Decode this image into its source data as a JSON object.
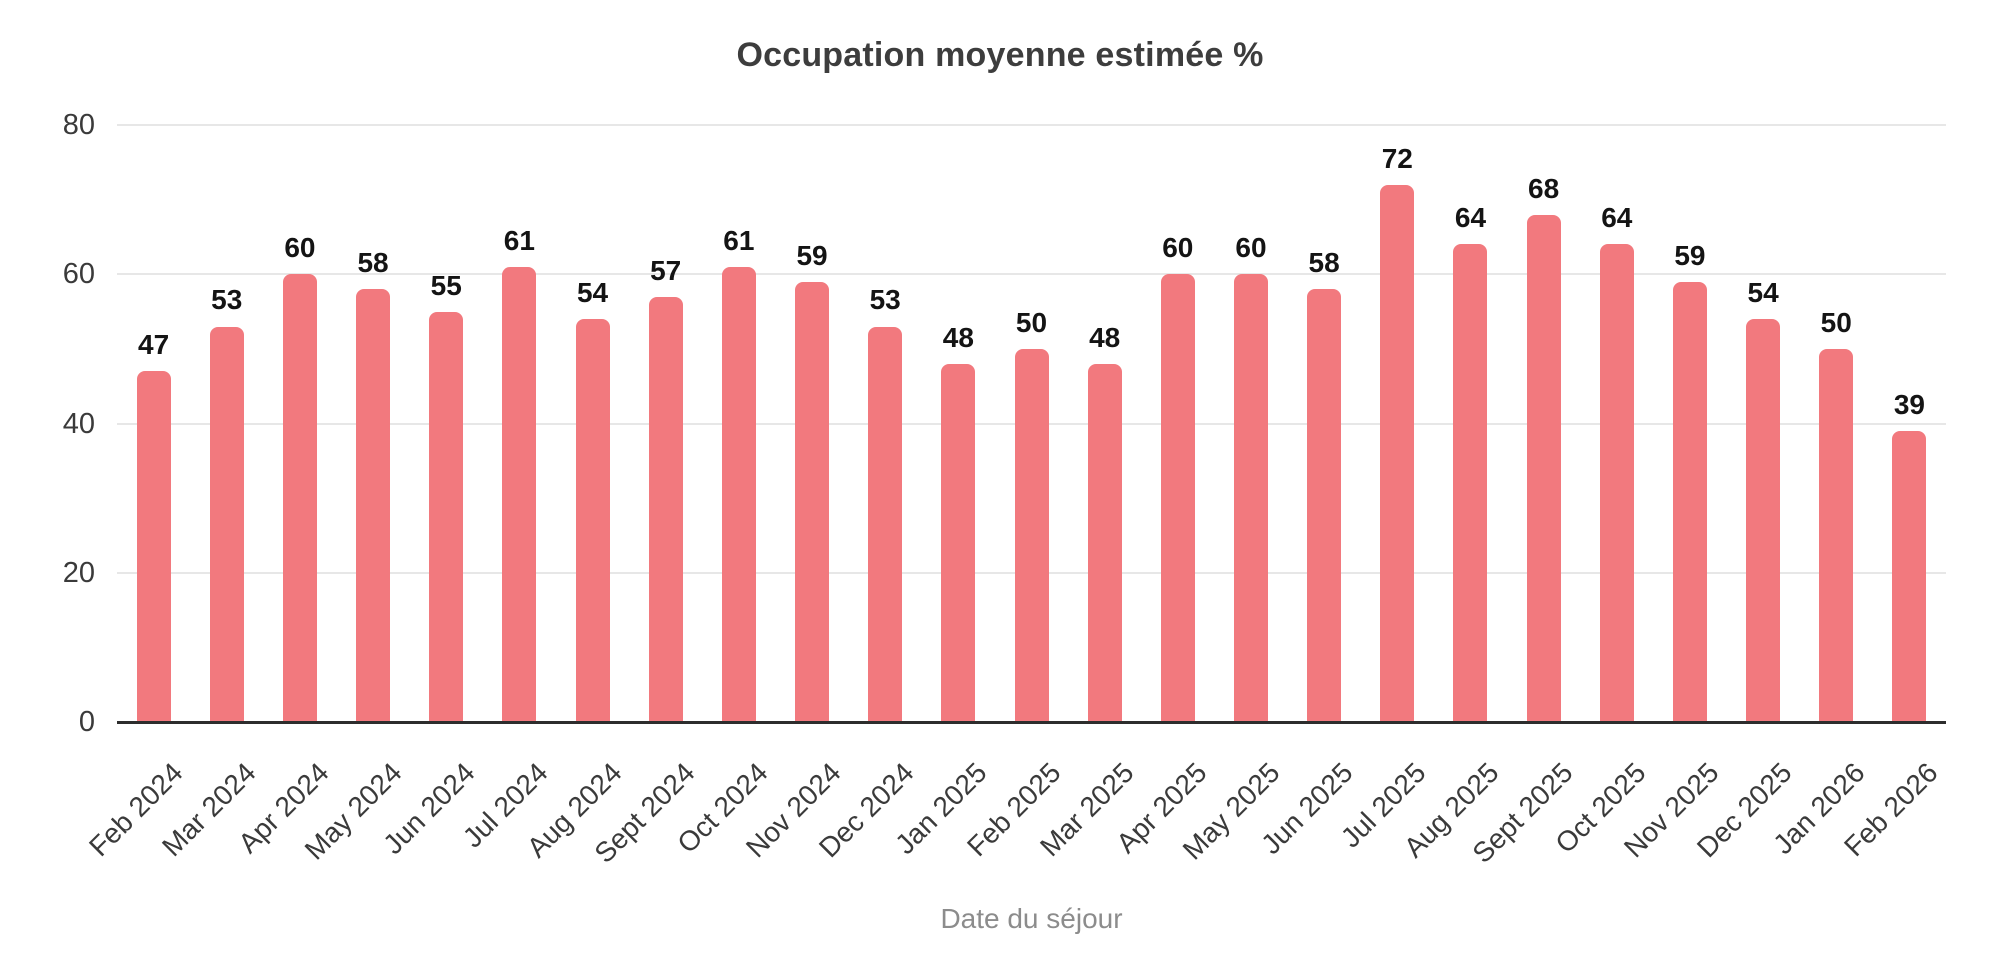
{
  "chart_data": {
    "type": "bar",
    "title": "Occupation moyenne estimée %",
    "xlabel": "Date du séjour",
    "ylabel": "",
    "categories": [
      "Feb 2024",
      "Mar 2024",
      "Apr 2024",
      "May 2024",
      "Jun 2024",
      "Jul 2024",
      "Aug 2024",
      "Sept 2024",
      "Oct 2024",
      "Nov 2024",
      "Dec 2024",
      "Jan 2025",
      "Feb 2025",
      "Mar 2025",
      "Apr 2025",
      "May 2025",
      "Jun 2025",
      "Jul 2025",
      "Aug 2025",
      "Sept 2025",
      "Oct 2025",
      "Nov 2025",
      "Dec 2025",
      "Jan 2026",
      "Feb 2026"
    ],
    "values": [
      47,
      53,
      60,
      58,
      55,
      61,
      54,
      57,
      61,
      59,
      53,
      48,
      50,
      48,
      60,
      60,
      58,
      72,
      64,
      68,
      64,
      59,
      54,
      50,
      39
    ],
    "value_labels_shown": true,
    "ylim": [
      0,
      80
    ],
    "yticks": [
      0,
      20,
      40,
      60,
      80
    ],
    "grid": true,
    "legend": null,
    "x_tick_rotation_deg": 45
  },
  "colors": {
    "bar_fill": "#f2797e",
    "axis_line": "#2d2d2d",
    "gridline": "#e7e7e7",
    "title_text": "#3d3d3d",
    "tick_text": "#3a3a3a",
    "value_label_text": "#141414",
    "axis_title_text": "#8c8c8c",
    "background": "#ffffff"
  }
}
